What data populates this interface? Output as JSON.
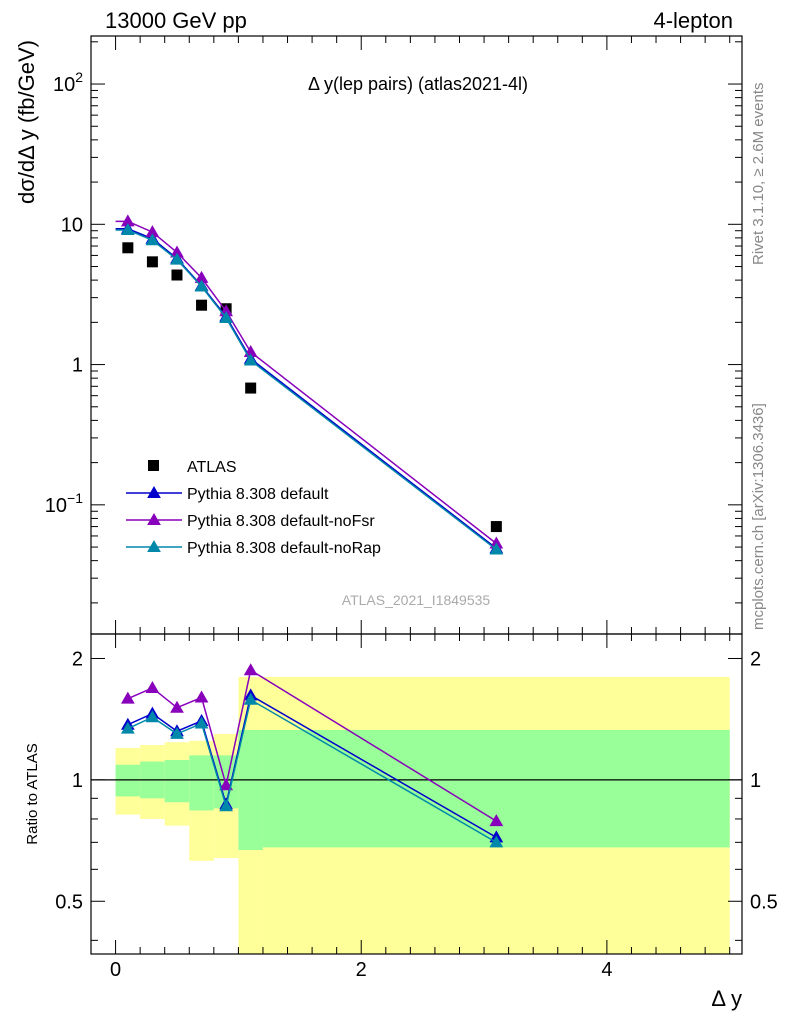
{
  "header": {
    "left": "13000 GeV pp",
    "right": "4-lepton"
  },
  "side_labels": {
    "rivet": "Rivet 3.1.10, ≥ 2.6M events",
    "mcplots": "mcplots.cern.ch [arXiv:1306.3436]"
  },
  "watermark": "ATLAS_2021_I1849535",
  "colors": {
    "data": "#000000",
    "default": "#0000cc",
    "noFsr": "#8800bb",
    "noRap": "#0088aa",
    "band_inner": "#99ff99",
    "band_outer": "#ffff99"
  },
  "chart_data": [
    {
      "type": "scatter",
      "title": "Δ y(lep pairs) (atlas2021-4l)",
      "xlabel": "Δ y",
      "ylabel": "dσ/dΔ y (fb/GeV)",
      "yscale": "log",
      "xlim": [
        -0.2,
        5.1
      ],
      "ylim": [
        0.012,
        220
      ],
      "ytick_labels": [
        "10^-1",
        "1",
        "10",
        "10^2"
      ],
      "legend_position": "lower-left",
      "series": [
        {
          "name": "ATLAS",
          "marker": "square",
          "x": [
            0.1,
            0.3,
            0.5,
            0.7,
            0.9,
            1.1,
            3.1
          ],
          "y": [
            6.8,
            5.4,
            4.35,
            2.65,
            2.5,
            0.68,
            0.07
          ]
        },
        {
          "name": "Pythia 8.308 default",
          "marker": "triangle",
          "x": [
            0.1,
            0.3,
            0.5,
            0.7,
            0.9,
            1.1,
            3.1
          ],
          "y": [
            9.3,
            7.9,
            5.7,
            3.65,
            2.2,
            1.1,
            0.049
          ]
        },
        {
          "name": "Pythia 8.308 default-noFsr",
          "marker": "triangle",
          "x": [
            0.1,
            0.3,
            0.5,
            0.7,
            0.9,
            1.1,
            3.1
          ],
          "y": [
            10.5,
            8.8,
            6.3,
            4.15,
            2.4,
            1.23,
            0.053
          ]
        },
        {
          "name": "Pythia 8.308 default-noRap",
          "marker": "triangle",
          "x": [
            0.1,
            0.3,
            0.5,
            0.7,
            0.9,
            1.1,
            3.1
          ],
          "y": [
            9.1,
            7.7,
            5.6,
            3.6,
            2.15,
            1.07,
            0.048
          ]
        }
      ]
    },
    {
      "type": "line",
      "xlabel": "Δ y",
      "ylabel": "Ratio to ATLAS",
      "ylim": [
        0.37,
        2.3
      ],
      "ytick_labels": [
        "0.5",
        "1",
        "2"
      ],
      "xtick_labels": [
        "0",
        "2",
        "4"
      ],
      "bands": {
        "x_edges": [
          0.0,
          0.2,
          0.4,
          0.6,
          0.8,
          1.0,
          1.2,
          5.0
        ],
        "inner_low": [
          0.91,
          0.9,
          0.88,
          0.84,
          0.85,
          0.67,
          0.68
        ],
        "inner_high": [
          1.09,
          1.11,
          1.12,
          1.15,
          1.15,
          1.33,
          1.33
        ],
        "outer_low": [
          0.82,
          0.8,
          0.77,
          0.63,
          0.64,
          0.33,
          0.33
        ],
        "outer_high": [
          1.2,
          1.22,
          1.24,
          1.25,
          1.3,
          1.8,
          1.8
        ]
      },
      "series": [
        {
          "name": "Pythia 8.308 default",
          "x": [
            0.1,
            0.3,
            0.5,
            0.7,
            0.9,
            1.1,
            3.1
          ],
          "y": [
            1.37,
            1.46,
            1.32,
            1.4,
            0.87,
            1.62,
            0.72
          ]
        },
        {
          "name": "Pythia 8.308 default-noFsr",
          "x": [
            0.1,
            0.3,
            0.5,
            0.7,
            0.9,
            1.1,
            3.1
          ],
          "y": [
            1.59,
            1.69,
            1.51,
            1.6,
            0.97,
            1.87,
            0.79
          ]
        },
        {
          "name": "Pythia 8.308 default-noRap",
          "x": [
            0.1,
            0.3,
            0.5,
            0.7,
            0.9,
            1.1,
            3.1
          ],
          "y": [
            1.34,
            1.43,
            1.3,
            1.38,
            0.86,
            1.58,
            0.7
          ]
        }
      ]
    }
  ]
}
